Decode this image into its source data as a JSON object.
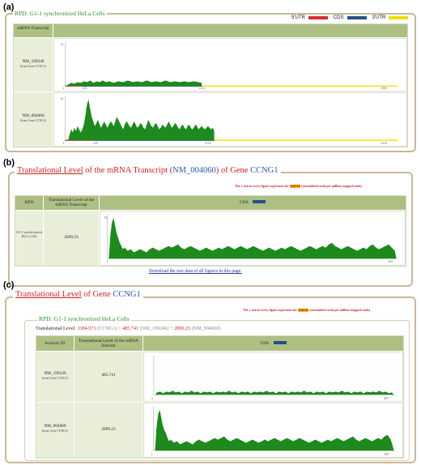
{
  "panels": {
    "a": {
      "letter": "(a)",
      "box_title": "RPD: G1-1 synchronized HeLa Cells",
      "legend": [
        {
          "label": "5'UTR",
          "color": "#d32f2f"
        },
        {
          "label": "CDS",
          "color": "#27508a"
        },
        {
          "label": "3'UTR",
          "color": "#e8e000"
        }
      ],
      "col_header": "mRNA Transcript",
      "rows": [
        {
          "name": "NM_199246",
          "gene": "(from Gene CCNG1)",
          "y_max": "15",
          "ticks": [
            "1",
            "225",
            "1122",
            "2390"
          ]
        },
        {
          "name": "NM_004060",
          "gene": "(from Gene CCNG1)",
          "y_max": "10",
          "ticks": [
            "1",
            "225",
            "1122",
            "2024"
          ]
        }
      ]
    },
    "b": {
      "letter": "(b)",
      "heading_part1": "Translational Level",
      "heading_part2": " of the mRNA Transcript (",
      "heading_transcript": "NM_004060",
      "heading_part3": ") of Gene ",
      "heading_gene": "CCNG1",
      "note_prefix": "The y-axis in every figure represents the ",
      "note_hl": "NRPM",
      "note_suffix": " (normalized reads per million mapped reads)",
      "col_rpd": "RPD",
      "col_level": "Translational Level of the mRNA Transcript",
      "col_cds": "CDS",
      "row_label": "G1-1 synchronized HeLa Cells",
      "row_value": "2899.23",
      "y_max": "12",
      "ticks": [
        "1",
        "897"
      ],
      "download": "Download the raw data of all figures in this page."
    },
    "c": {
      "letter": "(c)",
      "heading_part1": "Translational Level",
      "heading_part2": " of Gene ",
      "heading_gene": "CCNG1",
      "note_prefix": "The y-axis in every figure represents the ",
      "note_hl": "NRPM",
      "note_suffix": " (normalized reads per million mapped reads)",
      "box_title": "RPD: G1-1 synchronized HeLa Cells",
      "tl_label": "Translational Level: ",
      "tl_total": "3384.971",
      "tl_gene": " (CCNG1) = ",
      "tl_v1": "485.741",
      "tl_n1": " (NM_199246) + ",
      "tl_v2": "2899.23",
      "tl_n2": " (NM_004060)",
      "col_iso": "Isoform ID",
      "col_level": "Translational Level of the mRNA Isoform",
      "col_cds": "CDS",
      "rows": [
        {
          "name": "NM_199246",
          "gene": "(from Gene CCNG1)",
          "value": "485.741",
          "ticks": [
            "1",
            "897"
          ]
        },
        {
          "name": "NM_004060",
          "gene": "(from Gene CCNG1)",
          "value": "2899.23",
          "ticks": [
            "1",
            "897"
          ]
        }
      ]
    }
  }
}
